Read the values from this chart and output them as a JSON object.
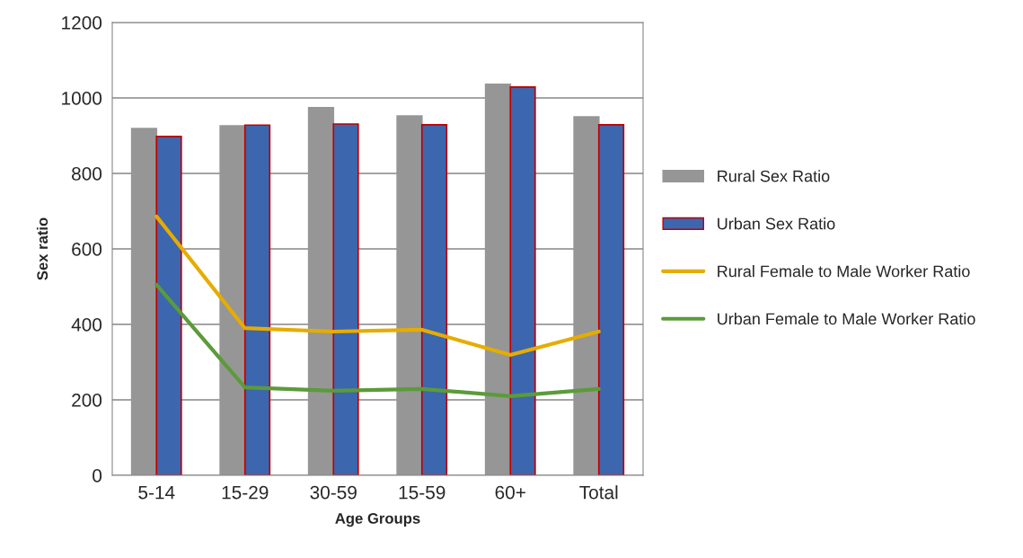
{
  "chart_data": {
    "type": "bar",
    "xlabel": "Age Groups",
    "ylabel": "Sex ratio",
    "categories": [
      "5-14",
      "15-29",
      "30-59",
      "15-59",
      "60+",
      "Total"
    ],
    "series": [
      {
        "name": "Rural Sex Ratio",
        "color": "#969696",
        "values": [
          919,
          926,
          974,
          952,
          1036,
          950
        ]
      },
      {
        "name": "Urban Sex Ratio",
        "color": "#3c66ae",
        "values": [
          898,
          928,
          931,
          929,
          1029,
          929
        ]
      },
      {
        "name": "Rural Female to Male Worker Ratio",
        "type": "line",
        "color": "#e6ac00",
        "values": [
          686,
          390,
          381,
          386,
          319,
          381
        ]
      },
      {
        "name": "Urban Female to Male Worker Ratio",
        "type": "line",
        "color": "#5b9b3a",
        "values": [
          505,
          233,
          224,
          229,
          210,
          229
        ]
      }
    ],
    "ylim": [
      0,
      1200
    ],
    "yticks": [
      0,
      200,
      400,
      600,
      800,
      1000,
      1200
    ],
    "grid": "y",
    "legend": "right",
    "marker": "none",
    "line_style": "solid"
  }
}
